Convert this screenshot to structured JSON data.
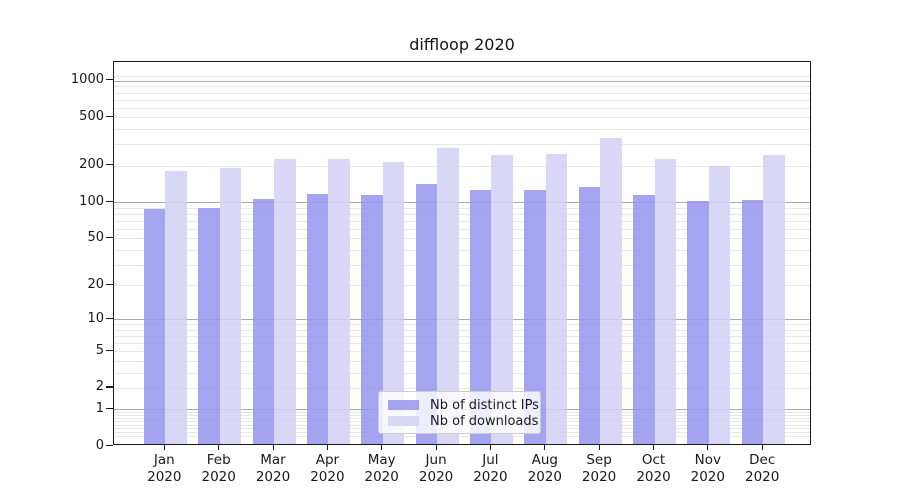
{
  "chart_data": {
    "type": "bar",
    "title": "diffloop 2020",
    "categories": [
      "Jan",
      "Feb",
      "Mar",
      "Apr",
      "May",
      "Jun",
      "Jul",
      "Aug",
      "Sep",
      "Oct",
      "Nov",
      "Dec"
    ],
    "year_label": "2020",
    "series": [
      {
        "name": "Nb of distinct IPs",
        "color": "#9494ed",
        "values": [
          85,
          86,
          103,
          113,
          111,
          135,
          122,
          122,
          129,
          111,
          99,
          100
        ]
      },
      {
        "name": "Nb of downloads",
        "color": "#d1d1f4",
        "values": [
          173,
          183,
          217,
          217,
          205,
          271,
          236,
          243,
          328,
          218,
          192,
          238
        ]
      }
    ],
    "y_ticks": [
      0,
      1,
      2,
      5,
      10,
      20,
      50,
      100,
      200,
      500,
      1000
    ],
    "y_scale": "log10(1+y)",
    "ylim": [
      0,
      1415
    ],
    "xlabel": "",
    "ylabel": "",
    "grid": "horizontal",
    "legend_position": "lower center",
    "colors": {
      "major_gridline": "#ababab",
      "minor_gridline": "#e7e7e7",
      "axis": "#1a1a1a",
      "legend_border": "#cccccc"
    }
  }
}
